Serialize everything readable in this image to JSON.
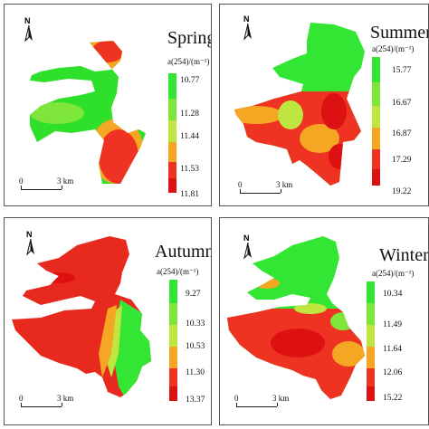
{
  "north_label": "N",
  "unit": "a(254)/(m⁻¹)",
  "scale": {
    "zero": "0",
    "distance": "3 km"
  },
  "panels": [
    {
      "season": "Spring",
      "legend": [
        "10.77",
        "11.28",
        "11.44",
        "11.53",
        "11.81"
      ],
      "legend_colors": [
        "#33e633",
        "#7ee63a",
        "#bfe640",
        "#f5a623",
        "#ee3322",
        "#dd1111"
      ],
      "dominant": "#2fe02a"
    },
    {
      "season": "Summer",
      "legend": [
        "15.77",
        "16.67",
        "16.87",
        "17.29",
        "19.22"
      ],
      "legend_colors": [
        "#33e633",
        "#7ee63a",
        "#bfe640",
        "#f5a623",
        "#ee3322",
        "#dd1111"
      ],
      "dominant": "#ee3322"
    },
    {
      "season": "Autumn",
      "legend": [
        "9.27",
        "10.33",
        "10.53",
        "11.30",
        "13.37"
      ],
      "legend_colors": [
        "#33e633",
        "#7ee63a",
        "#bfe640",
        "#f5a623",
        "#ee3322",
        "#dd1111"
      ],
      "dominant": "#e82a1e"
    },
    {
      "season": "Winter",
      "legend": [
        "10.34",
        "11.49",
        "11.64",
        "12.06",
        "15.22"
      ],
      "legend_colors": [
        "#33e633",
        "#7ee63a",
        "#bfe640",
        "#f5a623",
        "#ee3322",
        "#dd1111"
      ],
      "dominant": "#33e633"
    }
  ]
}
